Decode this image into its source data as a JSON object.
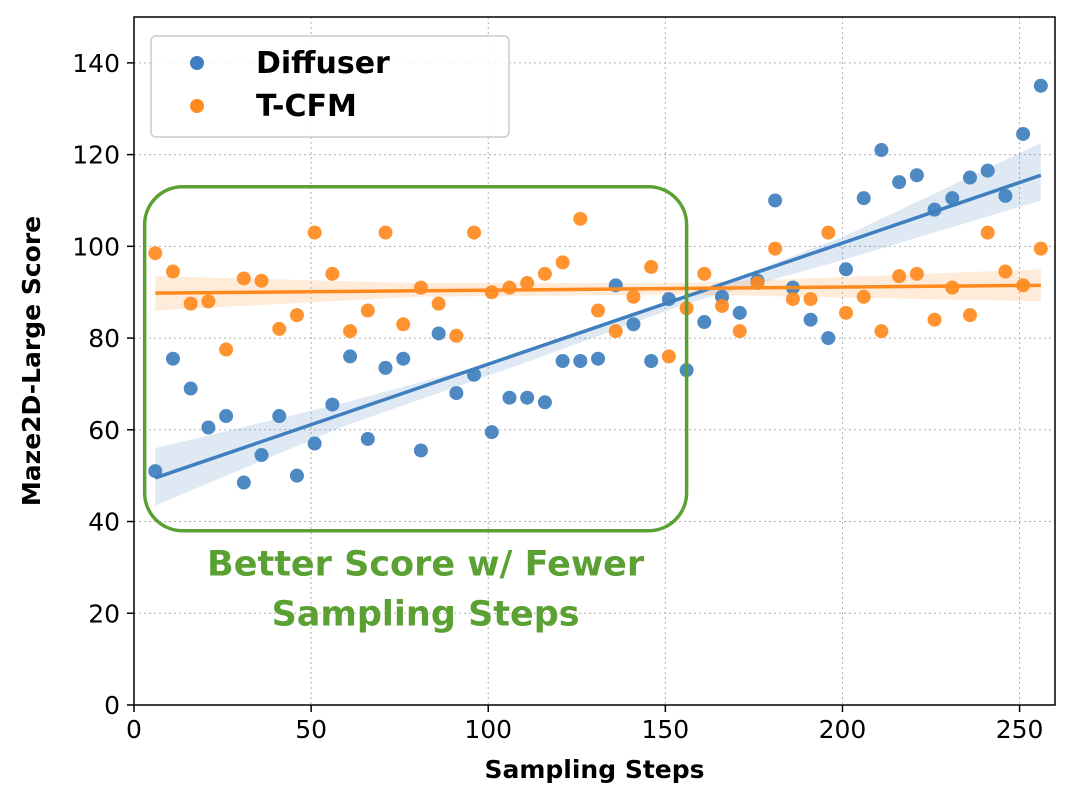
{
  "chart_data": {
    "type": "scatter",
    "xlabel": "Sampling Steps",
    "ylabel": "Maze2D-Large Score",
    "xlim": [
      0,
      260
    ],
    "ylim": [
      0,
      150
    ],
    "xticks": [
      0,
      50,
      100,
      150,
      200,
      250
    ],
    "yticks": [
      0,
      20,
      40,
      60,
      80,
      100,
      120,
      140
    ],
    "grid": true,
    "legend_position": "top-left",
    "series": [
      {
        "name": "Diffuser",
        "color": "#3f7fbf",
        "points": [
          [
            6,
            51
          ],
          [
            11,
            75.5
          ],
          [
            16,
            69
          ],
          [
            21,
            60.5
          ],
          [
            26,
            63
          ],
          [
            31,
            48.5
          ],
          [
            36,
            54.5
          ],
          [
            41,
            63
          ],
          [
            46,
            50
          ],
          [
            51,
            57
          ],
          [
            56,
            65.5
          ],
          [
            61,
            76
          ],
          [
            66,
            58
          ],
          [
            71,
            73.5
          ],
          [
            76,
            75.5
          ],
          [
            81,
            55.5
          ],
          [
            86,
            81
          ],
          [
            91,
            68
          ],
          [
            96,
            72
          ],
          [
            101,
            59.5
          ],
          [
            106,
            67
          ],
          [
            111,
            67
          ],
          [
            116,
            66
          ],
          [
            121,
            75
          ],
          [
            126,
            75
          ],
          [
            131,
            75.5
          ],
          [
            136,
            91.5
          ],
          [
            141,
            83
          ],
          [
            146,
            75
          ],
          [
            151,
            88.5
          ],
          [
            156,
            73
          ],
          [
            161,
            83.5
          ],
          [
            166,
            89
          ],
          [
            171,
            85.5
          ],
          [
            176,
            92.5
          ],
          [
            181,
            110
          ],
          [
            186,
            91
          ],
          [
            191,
            84
          ],
          [
            196,
            80
          ],
          [
            201,
            95
          ],
          [
            206,
            110.5
          ],
          [
            211,
            121
          ],
          [
            216,
            114
          ],
          [
            221,
            115.5
          ],
          [
            226,
            108
          ],
          [
            231,
            110.5
          ],
          [
            236,
            115
          ],
          [
            241,
            116.5
          ],
          [
            246,
            111
          ],
          [
            251,
            124.5
          ],
          [
            256,
            135
          ]
        ],
        "fit_line": [
          [
            6,
            49.5
          ],
          [
            256,
            115.5
          ]
        ],
        "ci_band": {
          "x": [
            6,
            60,
            110,
            156,
            200,
            256
          ],
          "lower": [
            43.5,
            61,
            74.5,
            87.5,
            97,
            110
          ],
          "upper": [
            56,
            66,
            76.5,
            89,
            102,
            122.5
          ]
        }
      },
      {
        "name": "T-CFM",
        "color": "#ff8a1e",
        "points": [
          [
            6,
            98.5
          ],
          [
            11,
            94.5
          ],
          [
            16,
            87.5
          ],
          [
            21,
            88
          ],
          [
            26,
            77.5
          ],
          [
            31,
            93
          ],
          [
            36,
            92.5
          ],
          [
            41,
            82
          ],
          [
            46,
            85
          ],
          [
            51,
            103
          ],
          [
            56,
            94
          ],
          [
            61,
            81.5
          ],
          [
            66,
            86
          ],
          [
            71,
            103
          ],
          [
            76,
            83
          ],
          [
            81,
            91
          ],
          [
            86,
            87.5
          ],
          [
            91,
            80.5
          ],
          [
            96,
            103
          ],
          [
            101,
            90
          ],
          [
            106,
            91
          ],
          [
            111,
            92
          ],
          [
            116,
            94
          ],
          [
            121,
            96.5
          ],
          [
            126,
            106
          ],
          [
            131,
            86
          ],
          [
            136,
            81.5
          ],
          [
            141,
            89
          ],
          [
            146,
            95.5
          ],
          [
            151,
            76
          ],
          [
            156,
            86.5
          ],
          [
            161,
            94
          ],
          [
            166,
            87
          ],
          [
            171,
            81.5
          ],
          [
            176,
            92
          ],
          [
            181,
            99.5
          ],
          [
            186,
            88.5
          ],
          [
            191,
            88.5
          ],
          [
            196,
            103
          ],
          [
            201,
            85.5
          ],
          [
            206,
            89
          ],
          [
            211,
            81.5
          ],
          [
            216,
            93.5
          ],
          [
            221,
            94
          ],
          [
            226,
            84
          ],
          [
            231,
            91
          ],
          [
            236,
            85
          ],
          [
            241,
            103
          ],
          [
            246,
            94.5
          ],
          [
            251,
            91.5
          ],
          [
            256,
            99.5
          ]
        ],
        "fit_line": [
          [
            6,
            89.8
          ],
          [
            256,
            91.5
          ]
        ],
        "ci_band": {
          "x": [
            6,
            80,
            156,
            256
          ],
          "lower": [
            86,
            89,
            89.5,
            88
          ],
          "upper": [
            93.5,
            92,
            92,
            95
          ]
        }
      }
    ],
    "annotation": {
      "text_lines": [
        "Better Score w/ Fewer",
        "Sampling Steps"
      ],
      "color": "#5aa032",
      "box_x": [
        3,
        156
      ],
      "box_y": [
        38,
        113
      ]
    }
  }
}
